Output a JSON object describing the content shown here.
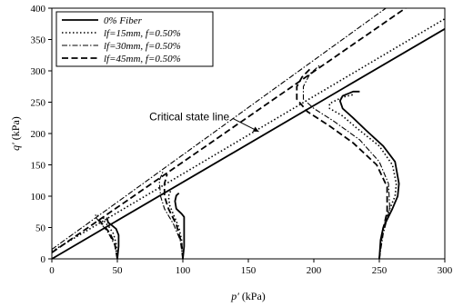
{
  "chart_data": {
    "type": "line",
    "xlabel": "p′",
    "xunit": "(kPa)",
    "ylabel": "q′",
    "yunit": "(kPa)",
    "xlim": [
      0,
      300
    ],
    "ylim": [
      0,
      400
    ],
    "xticks": [
      0,
      50,
      100,
      150,
      200,
      250,
      300
    ],
    "yticks": [
      0,
      50,
      100,
      150,
      200,
      250,
      300,
      350,
      400
    ],
    "grid": false,
    "legend": "top-left",
    "annotation": {
      "text": "Critical state line",
      "x": 105,
      "y": 221,
      "arrow_to": [
        158,
        203
      ]
    },
    "series": [
      {
        "name": "0% Fiber",
        "color": "#000000",
        "dash": "solid",
        "width": 1.8,
        "paths": [
          [
            [
              0,
              0
            ],
            [
              300,
              367
            ]
          ],
          [
            [
              50,
              0
            ],
            [
              51,
              20
            ],
            [
              51,
              38
            ],
            [
              49,
              48
            ],
            [
              45,
              55
            ],
            [
              43,
              58
            ],
            [
              42,
              66
            ]
          ],
          [
            [
              100,
              0
            ],
            [
              101,
              20
            ],
            [
              101,
              50
            ],
            [
              101,
              67
            ],
            [
              99,
              72
            ],
            [
              95,
              80
            ],
            [
              94,
              92
            ],
            [
              95,
              101
            ],
            [
              97,
              105
            ]
          ],
          [
            [
              250,
              0
            ],
            [
              251,
              30
            ],
            [
              253,
              50
            ],
            [
              260,
              80
            ],
            [
              264,
              100
            ],
            [
              265,
              120
            ],
            [
              262,
              155
            ],
            [
              253,
              180
            ],
            [
              240,
              205
            ],
            [
              230,
              225
            ],
            [
              222,
              240
            ],
            [
              220,
              252
            ],
            [
              222,
              260
            ],
            [
              230,
              267
            ],
            [
              235,
              267
            ]
          ]
        ]
      },
      {
        "name": "lf=15mm, f=0.50%",
        "color": "#000000",
        "dash": "dotted",
        "width": 1.6,
        "paths": [
          [
            [
              0,
              12
            ],
            [
              300,
              383
            ]
          ],
          [
            [
              50,
              0
            ],
            [
              49,
              25
            ],
            [
              47,
              40
            ],
            [
              44,
              50
            ],
            [
              40,
              60
            ],
            [
              39,
              68
            ]
          ],
          [
            [
              100,
              0
            ],
            [
              99,
              30
            ],
            [
              97,
              50
            ],
            [
              93,
              70
            ],
            [
              90,
              85
            ],
            [
              89,
              100
            ],
            [
              91,
              110
            ]
          ],
          [
            [
              250,
              0
            ],
            [
              252,
              40
            ],
            [
              256,
              70
            ],
            [
              262,
              100
            ],
            [
              263,
              120
            ],
            [
              260,
              150
            ],
            [
              250,
              180
            ],
            [
              232,
              210
            ],
            [
              222,
              228
            ],
            [
              212,
              240
            ],
            [
              212,
              248
            ],
            [
              222,
              258
            ],
            [
              230,
              262
            ]
          ]
        ]
      },
      {
        "name": "lf=30mm, f=0.50%",
        "color": "#000000",
        "dash": "dashdot",
        "width": 1.1,
        "paths": [
          [
            [
              0,
              15
            ],
            [
              255,
              400
            ]
          ],
          [
            [
              50,
              0
            ],
            [
              48,
              22
            ],
            [
              43,
              42
            ],
            [
              38,
              55
            ],
            [
              34,
              65
            ],
            [
              33,
              73
            ]
          ],
          [
            [
              100,
              0
            ],
            [
              98,
              30
            ],
            [
              93,
              55
            ],
            [
              86,
              80
            ],
            [
              83,
              100
            ],
            [
              82,
              125
            ],
            [
              85,
              140
            ]
          ],
          [
            [
              250,
              0
            ],
            [
              253,
              40
            ],
            [
              258,
              80
            ],
            [
              257,
              120
            ],
            [
              250,
              155
            ],
            [
              235,
              190
            ],
            [
              215,
              220
            ],
            [
              200,
              240
            ],
            [
              192,
              255
            ],
            [
              192,
              275
            ],
            [
              197,
              295
            ],
            [
              205,
              310
            ]
          ]
        ]
      },
      {
        "name": "lf=45mm, f=0.50%",
        "color": "#000000",
        "dash": "dashed",
        "width": 1.8,
        "paths": [
          [
            [
              0,
              10
            ],
            [
              270,
              400
            ]
          ],
          [
            [
              50,
              0
            ],
            [
              48,
              25
            ],
            [
              44,
              42
            ],
            [
              40,
              52
            ],
            [
              36,
              62
            ],
            [
              35,
              70
            ]
          ],
          [
            [
              100,
              0
            ],
            [
              99,
              25
            ],
            [
              95,
              55
            ],
            [
              89,
              80
            ],
            [
              86,
              100
            ],
            [
              86,
              120
            ],
            [
              88,
              135
            ]
          ],
          [
            [
              250,
              0
            ],
            [
              252,
              40
            ],
            [
              256,
              75
            ],
            [
              256,
              115
            ],
            [
              248,
              150
            ],
            [
              230,
              185
            ],
            [
              212,
              212
            ],
            [
              195,
              235
            ],
            [
              187,
              255
            ],
            [
              187,
              275
            ],
            [
              191,
              290
            ],
            [
              198,
              305
            ]
          ]
        ]
      }
    ]
  }
}
